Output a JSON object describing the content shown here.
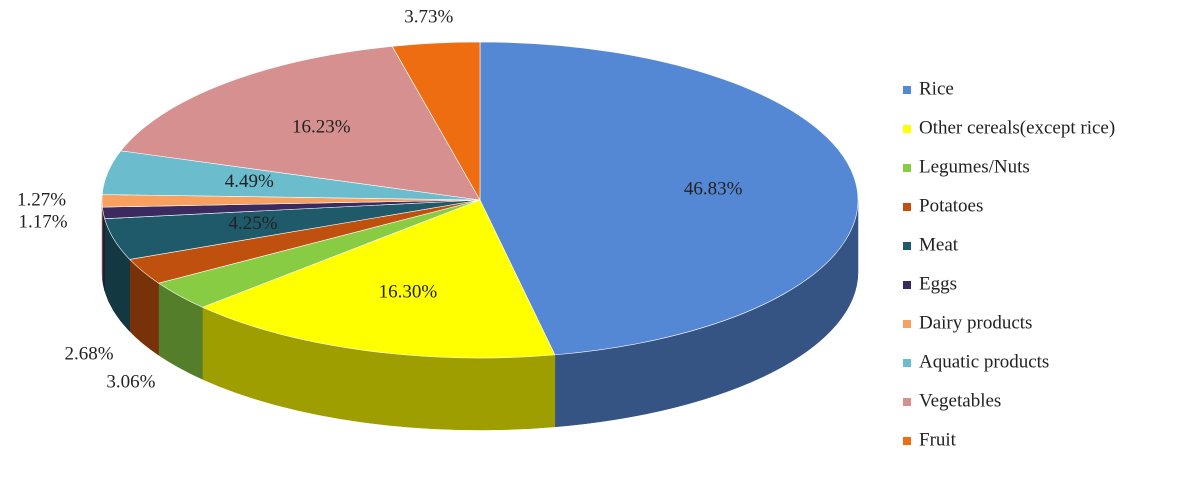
{
  "chart_data": {
    "type": "pie",
    "categories": [
      "Rice",
      "Other cereals(except rice)",
      "Legumes/Nuts",
      "Potatoes",
      "Meat",
      "Eggs",
      "Dairy products",
      "Aquatic products",
      "Vegetables",
      "Fruit"
    ],
    "values": [
      46.83,
      16.3,
      3.06,
      2.68,
      4.25,
      1.17,
      1.27,
      4.49,
      16.23,
      3.73
    ],
    "value_labels": [
      "46.83%",
      "16.30%",
      "3.06%",
      "2.68%",
      "4.25%",
      "1.17%",
      "1.27%",
      "4.49%",
      "16.23%",
      "3.73%"
    ],
    "colors": [
      "#5588d4",
      "#ffff00",
      "#88cc44",
      "#c0500e",
      "#1f5a6b",
      "#3a2a60",
      "#f8a060",
      "#6bbccc",
      "#d69090",
      "#ee6d10"
    ],
    "legend": "right"
  }
}
